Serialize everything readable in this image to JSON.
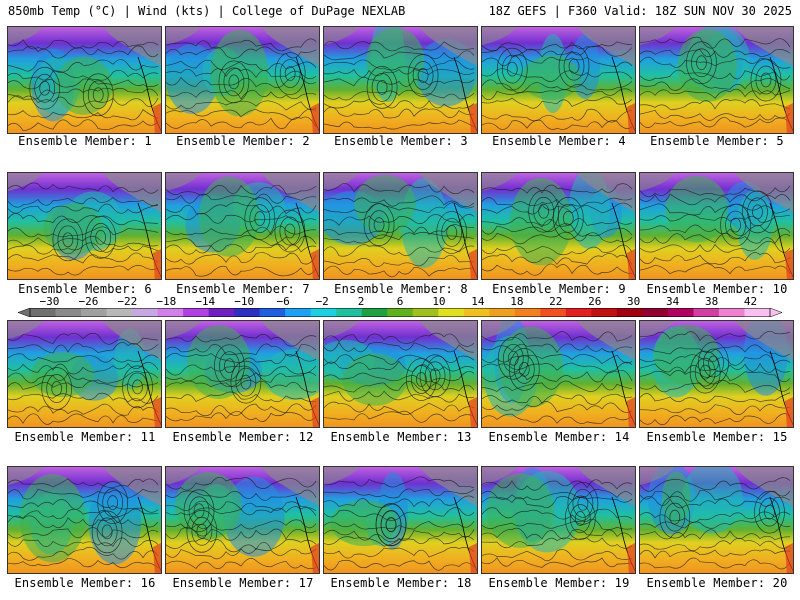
{
  "header": {
    "left": "850mb Temp (°C) | Wind (kts) | College of DuPage NEXLAB",
    "right": "18Z GEFS | F360 Valid: 18Z SUN NOV 30 2025"
  },
  "colorbar": {
    "labels": [
      "-30",
      "-26",
      "-22",
      "-18",
      "-14",
      "-10",
      "-6",
      "-2",
      "2",
      "6",
      "10",
      "14",
      "18",
      "22",
      "26",
      "30",
      "34",
      "38",
      "42"
    ],
    "min": -32,
    "max": 44,
    "colors": [
      "#707070",
      "#8a8a8a",
      "#a0a0a0",
      "#b8b8b8",
      "#c8a8e0",
      "#d080e8",
      "#b040e0",
      "#7020c0",
      "#3030c0",
      "#2060e0",
      "#20a0f0",
      "#20d0e0",
      "#20c0a0",
      "#20a040",
      "#60b020",
      "#a0c020",
      "#e0e020",
      "#f0c020",
      "#f0a020",
      "#f08020",
      "#f05020",
      "#e02020",
      "#c01010",
      "#a00010",
      "#900030",
      "#b00060",
      "#d040a0",
      "#f080d0",
      "#f8c0f0"
    ]
  },
  "panels": [
    {
      "label": "Ensemble Member: 1"
    },
    {
      "label": "Ensemble Member: 2"
    },
    {
      "label": "Ensemble Member: 3"
    },
    {
      "label": "Ensemble Member: 4"
    },
    {
      "label": "Ensemble Member: 5"
    },
    {
      "label": "Ensemble Member: 6"
    },
    {
      "label": "Ensemble Member: 7"
    },
    {
      "label": "Ensemble Member: 8"
    },
    {
      "label": "Ensemble Member: 9"
    },
    {
      "label": "Ensemble Member: 10"
    },
    {
      "label": "Ensemble Member: 11"
    },
    {
      "label": "Ensemble Member: 12"
    },
    {
      "label": "Ensemble Member: 13"
    },
    {
      "label": "Ensemble Member: 14"
    },
    {
      "label": "Ensemble Member: 15"
    },
    {
      "label": "Ensemble Member: 16"
    },
    {
      "label": "Ensemble Member: 17"
    },
    {
      "label": "Ensemble Member: 18"
    },
    {
      "label": "Ensemble Member: 19"
    },
    {
      "label": "Ensemble Member: 20"
    }
  ]
}
